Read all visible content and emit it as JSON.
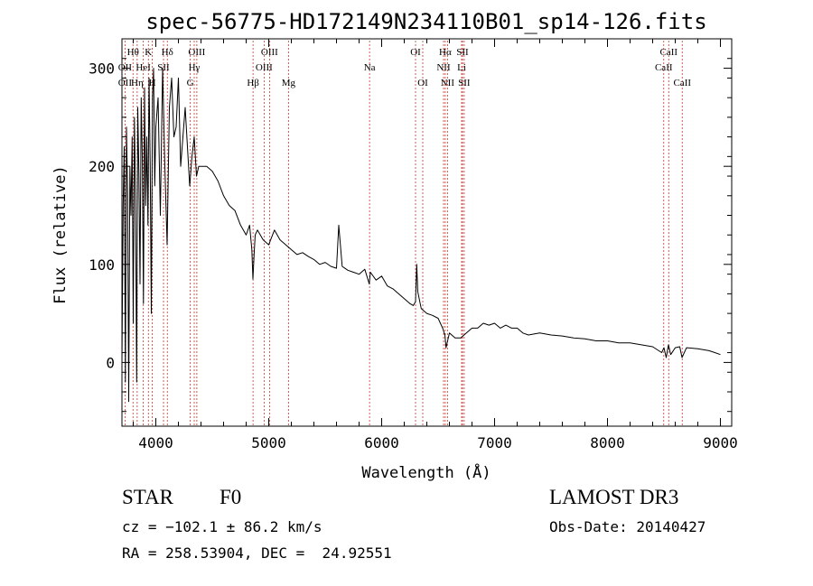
{
  "chart_data": {
    "type": "line",
    "title": "spec-56775-HD172149N234110B01_sp14-126.fits",
    "xlabel": "Wavelength (Å)",
    "ylabel": "Flux (relative)",
    "xlim": [
      3700,
      9100
    ],
    "ylim": [
      -65,
      330
    ],
    "xticks": [
      4000,
      5000,
      6000,
      7000,
      8000,
      9000
    ],
    "yticks": [
      0,
      100,
      200,
      300
    ],
    "grid": false,
    "series": [
      {
        "name": "spectrum",
        "x": [
          3700,
          3710,
          3720,
          3730,
          3740,
          3750,
          3760,
          3770,
          3780,
          3790,
          3800,
          3810,
          3820,
          3830,
          3840,
          3850,
          3860,
          3870,
          3880,
          3890,
          3900,
          3910,
          3920,
          3930,
          3940,
          3950,
          3960,
          3970,
          3980,
          3990,
          4000,
          4020,
          4040,
          4060,
          4080,
          4100,
          4120,
          4140,
          4160,
          4180,
          4200,
          4220,
          4240,
          4260,
          4280,
          4300,
          4320,
          4340,
          4360,
          4380,
          4400,
          4450,
          4500,
          4550,
          4600,
          4650,
          4700,
          4750,
          4800,
          4830,
          4850,
          4860,
          4870,
          4880,
          4900,
          4950,
          5000,
          5050,
          5100,
          5150,
          5200,
          5250,
          5300,
          5350,
          5400,
          5450,
          5500,
          5550,
          5600,
          5620,
          5650,
          5700,
          5750,
          5800,
          5850,
          5890,
          5900,
          5950,
          6000,
          6050,
          6100,
          6150,
          6200,
          6250,
          6280,
          6300,
          6310,
          6320,
          6350,
          6400,
          6450,
          6500,
          6540,
          6560,
          6570,
          6580,
          6600,
          6650,
          6700,
          6750,
          6800,
          6850,
          6900,
          6950,
          7000,
          7050,
          7100,
          7150,
          7200,
          7250,
          7300,
          7400,
          7500,
          7600,
          7700,
          7800,
          7900,
          8000,
          8100,
          8200,
          8300,
          8400,
          8480,
          8500,
          8520,
          8540,
          8560,
          8600,
          8640,
          8660,
          8700,
          8800,
          8900,
          8950,
          9000
        ],
        "values": [
          0,
          160,
          220,
          -20,
          240,
          170,
          -40,
          200,
          150,
          230,
          40,
          250,
          170,
          -20,
          260,
          190,
          80,
          270,
          210,
          60,
          280,
          160,
          230,
          140,
          290,
          200,
          50,
          270,
          300,
          180,
          240,
          270,
          150,
          300,
          200,
          120,
          260,
          290,
          230,
          240,
          290,
          200,
          230,
          260,
          220,
          180,
          210,
          230,
          190,
          200,
          200,
          200,
          195,
          185,
          170,
          160,
          155,
          140,
          130,
          140,
          115,
          85,
          110,
          130,
          135,
          125,
          120,
          135,
          125,
          120,
          115,
          110,
          112,
          108,
          105,
          100,
          102,
          98,
          96,
          140,
          98,
          94,
          92,
          90,
          95,
          80,
          92,
          84,
          88,
          78,
          75,
          70,
          65,
          60,
          58,
          62,
          100,
          72,
          55,
          50,
          48,
          45,
          35,
          28,
          15,
          20,
          30,
          25,
          25,
          30,
          35,
          35,
          40,
          38,
          40,
          35,
          38,
          35,
          35,
          30,
          28,
          30,
          28,
          27,
          25,
          24,
          22,
          22,
          20,
          20,
          18,
          16,
          10,
          15,
          5,
          18,
          8,
          15,
          16,
          5,
          15,
          14,
          12,
          10,
          8
        ]
      }
    ],
    "lines": [
      {
        "name": "Hθ",
        "wavelength": 3798,
        "row": 1
      },
      {
        "name": "OII",
        "wavelength": 3727,
        "row": 2
      },
      {
        "name": "OII",
        "wavelength": 3727,
        "row": 3
      },
      {
        "name": "Hη",
        "wavelength": 3835,
        "row": 3
      },
      {
        "name": "HeI",
        "wavelength": 3889,
        "row": 2
      },
      {
        "name": "K",
        "wavelength": 3934,
        "row": 1
      },
      {
        "name": "SII",
        "wavelength": 4068,
        "row": 2
      },
      {
        "name": "H",
        "wavelength": 3969,
        "row": 3
      },
      {
        "name": "Hδ",
        "wavelength": 4102,
        "row": 1
      },
      {
        "name": "OIII",
        "wavelength": 4363,
        "row": 1
      },
      {
        "name": "Hγ",
        "wavelength": 4340,
        "row": 2
      },
      {
        "name": "G",
        "wavelength": 4305,
        "row": 3
      },
      {
        "name": "OIII",
        "wavelength": 5007,
        "row": 1
      },
      {
        "name": "OIII",
        "wavelength": 4959,
        "row": 2
      },
      {
        "name": "Hβ",
        "wavelength": 4861,
        "row": 3
      },
      {
        "name": "Mg",
        "wavelength": 5175,
        "row": 3
      },
      {
        "name": "Na",
        "wavelength": 5893,
        "row": 2
      },
      {
        "name": "OI",
        "wavelength": 6300,
        "row": 1
      },
      {
        "name": "OI",
        "wavelength": 6364,
        "row": 3
      },
      {
        "name": "Hα",
        "wavelength": 6563,
        "row": 1
      },
      {
        "name": "SII",
        "wavelength": 6716,
        "row": 1
      },
      {
        "name": "NII",
        "wavelength": 6548,
        "row": 2
      },
      {
        "name": "Li",
        "wavelength": 6708,
        "row": 2
      },
      {
        "name": "NII",
        "wavelength": 6583,
        "row": 3
      },
      {
        "name": "SII",
        "wavelength": 6731,
        "row": 3
      },
      {
        "name": "CaII",
        "wavelength": 8542,
        "row": 1
      },
      {
        "name": "CaII",
        "wavelength": 8498,
        "row": 2
      },
      {
        "name": "CaII",
        "wavelength": 8662,
        "row": 3
      }
    ]
  },
  "info": {
    "object_type": "STAR",
    "subclass": "F0",
    "survey": "LAMOST DR3",
    "redshift": "cz = −102.1 ± 86.2 km/s",
    "obs_date": "Obs-Date: 20140427",
    "coords": "RA = 258.53904, DEC =  24.92551"
  },
  "colors": {
    "spectrum": "#000000",
    "line_markers": "#c0392b",
    "axes": "#000000"
  }
}
